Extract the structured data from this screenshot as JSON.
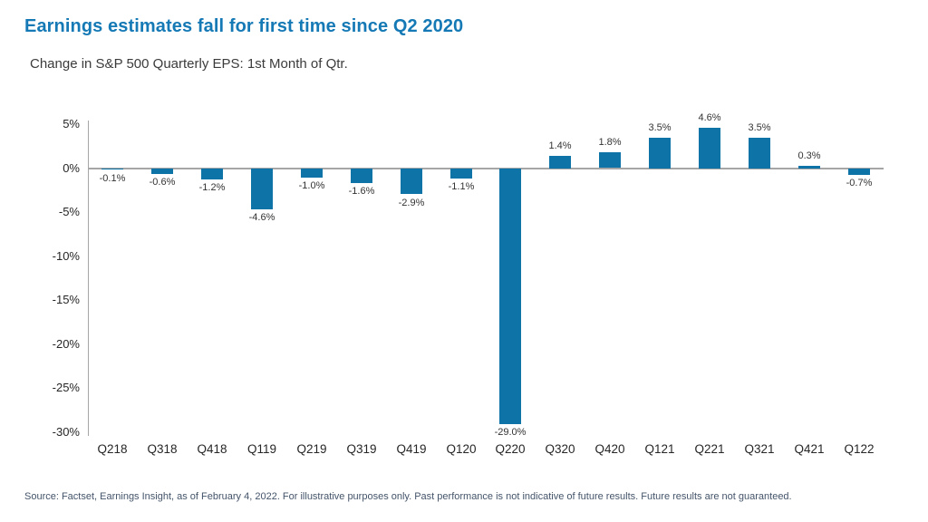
{
  "page": {
    "title": "Earnings estimates fall for first time since Q2 2020",
    "subtitle": "Change in S&P 500 Quarterly EPS: 1st Month of Qtr.",
    "source_note": "Source: Factset, Earnings Insight, as of February 4, 2022. For illustrative purposes only. Past performance is not indicative of future results. Future results are not guaranteed."
  },
  "colors": {
    "title_blue": "#1579B5",
    "bar_fill": "#0E74A8",
    "axis_gray": "#A6A6A6",
    "label_text": "#333333",
    "source_text": "#44546A"
  },
  "chart_data": {
    "type": "bar",
    "title": "Change in S&P 500 Quarterly EPS: 1st Month of Qtr.",
    "categories": [
      "Q218",
      "Q318",
      "Q418",
      "Q119",
      "Q219",
      "Q319",
      "Q419",
      "Q120",
      "Q220",
      "Q320",
      "Q420",
      "Q121",
      "Q221",
      "Q321",
      "Q421",
      "Q122"
    ],
    "values": [
      -0.1,
      -0.6,
      -1.2,
      -4.6,
      -1.0,
      -1.6,
      -2.9,
      -1.1,
      -29.0,
      1.4,
      1.8,
      3.5,
      4.6,
      3.5,
      0.3,
      -0.7
    ],
    "data_labels": [
      "-0.1%",
      "-0.6%",
      "-1.2%",
      "-4.6%",
      "-1.0%",
      "-1.6%",
      "-2.9%",
      "-1.1%",
      "-29.0%",
      "1.4%",
      "1.8%",
      "3.5%",
      "4.6%",
      "3.5%",
      "0.3%",
      "-0.7%"
    ],
    "xlabel": "",
    "ylabel": "",
    "ylim": [
      -30,
      5
    ],
    "ytick_values": [
      5,
      0,
      -5,
      -10,
      -15,
      -20,
      -25,
      -30
    ],
    "ytick_labels": [
      "5%",
      "0%",
      "-5%",
      "-10%",
      "-15%",
      "-20%",
      "-25%",
      "-30%"
    ],
    "grid": false,
    "legend": "none",
    "bar_color": "#0E74A8",
    "data_label_position": "outside-end"
  }
}
